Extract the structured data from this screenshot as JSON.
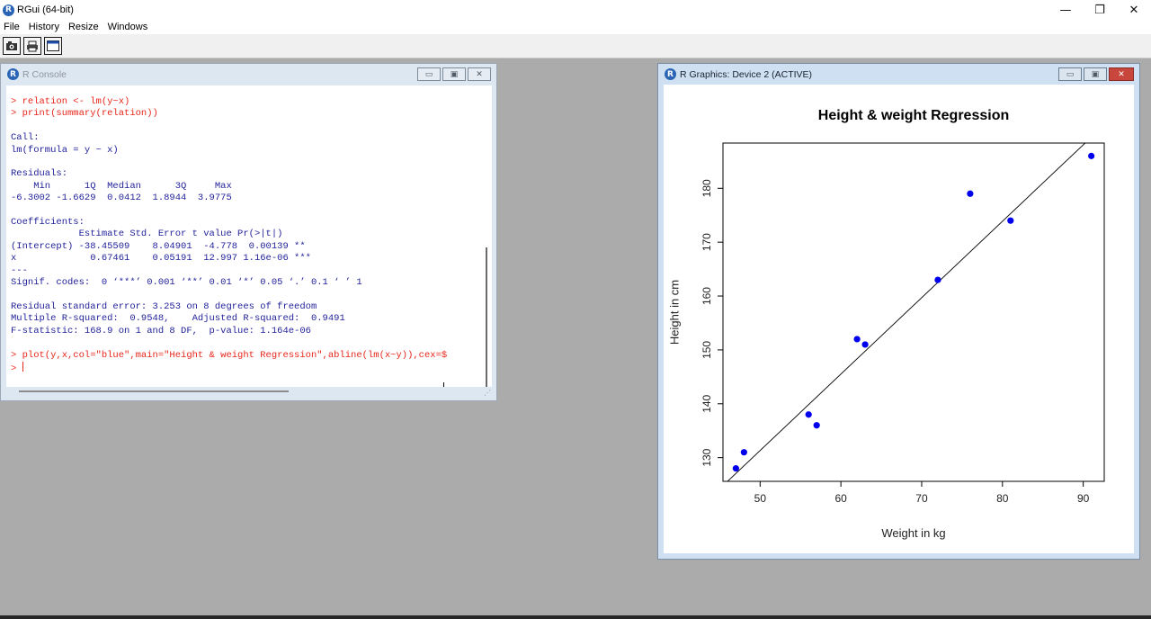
{
  "app": {
    "title": "RGui (64-bit)",
    "logo_letter": "R"
  },
  "window_controls": {
    "minimize": "—",
    "restore": "❐",
    "close": "✕"
  },
  "menubar": [
    "File",
    "History",
    "Resize",
    "Windows"
  ],
  "toolbar": {
    "buttons": [
      "open-script-icon",
      "print-icon",
      "console-window-icon"
    ]
  },
  "console": {
    "title": "R Console",
    "lines": [
      {
        "type": "cmd",
        "text": "> relation <- lm(y~x)"
      },
      {
        "type": "cmd",
        "text": "> print(summary(relation))"
      },
      {
        "type": "out",
        "text": ""
      },
      {
        "type": "out",
        "text": "Call:"
      },
      {
        "type": "out",
        "text": "lm(formula = y ~ x)"
      },
      {
        "type": "out",
        "text": ""
      },
      {
        "type": "out",
        "text": "Residuals:"
      },
      {
        "type": "out",
        "text": "    Min      1Q  Median      3Q     Max "
      },
      {
        "type": "out",
        "text": "-6.3002 -1.6629  0.0412  1.8944  3.9775 "
      },
      {
        "type": "out",
        "text": ""
      },
      {
        "type": "out",
        "text": "Coefficients:"
      },
      {
        "type": "out",
        "text": "            Estimate Std. Error t value Pr(>|t|)    "
      },
      {
        "type": "out",
        "text": "(Intercept) -38.45509    8.04901  -4.778  0.00139 ** "
      },
      {
        "type": "out",
        "text": "x             0.67461    0.05191  12.997 1.16e-06 ***"
      },
      {
        "type": "out",
        "text": "---"
      },
      {
        "type": "out",
        "text": "Signif. codes:  0 ‘***’ 0.001 ‘**’ 0.01 ‘*’ 0.05 ‘.’ 0.1 ‘ ’ 1"
      },
      {
        "type": "out",
        "text": ""
      },
      {
        "type": "out",
        "text": "Residual standard error: 3.253 on 8 degrees of freedom"
      },
      {
        "type": "out",
        "text": "Multiple R-squared:  0.9548,\tAdjusted R-squared:  0.9491 "
      },
      {
        "type": "out",
        "text": "F-statistic: 168.9 on 1 and 8 DF,  p-value: 1.164e-06"
      },
      {
        "type": "out",
        "text": ""
      },
      {
        "type": "cmd",
        "text": "> plot(y,x,col=\"blue\",main=\"Height & weight Regression\",abline(lm(x~y)),cex=$"
      },
      {
        "type": "prompt",
        "text": "> "
      }
    ]
  },
  "graphics": {
    "title": "R Graphics: Device 2 (ACTIVE)"
  },
  "chart_data": {
    "type": "scatter",
    "title": "Height & weight Regression",
    "xlabel": "Weight in kg",
    "ylabel": "Height in cm",
    "xlim": [
      45.4,
      92.6
    ],
    "ylim": [
      125.6,
      188.4
    ],
    "xticks": [
      50,
      60,
      70,
      80,
      90
    ],
    "yticks": [
      130,
      140,
      150,
      160,
      170,
      180
    ],
    "point_color": "#0000ee",
    "points": [
      {
        "x": 47,
        "y": 128
      },
      {
        "x": 48,
        "y": 131
      },
      {
        "x": 56,
        "y": 138
      },
      {
        "x": 57,
        "y": 136
      },
      {
        "x": 62,
        "y": 152
      },
      {
        "x": 63,
        "y": 151
      },
      {
        "x": 72,
        "y": 163
      },
      {
        "x": 76,
        "y": 179
      },
      {
        "x": 81,
        "y": 174
      },
      {
        "x": 91,
        "y": 186
      }
    ],
    "regression_line": {
      "intercept": 60.4,
      "slope": 1.4185
    }
  }
}
